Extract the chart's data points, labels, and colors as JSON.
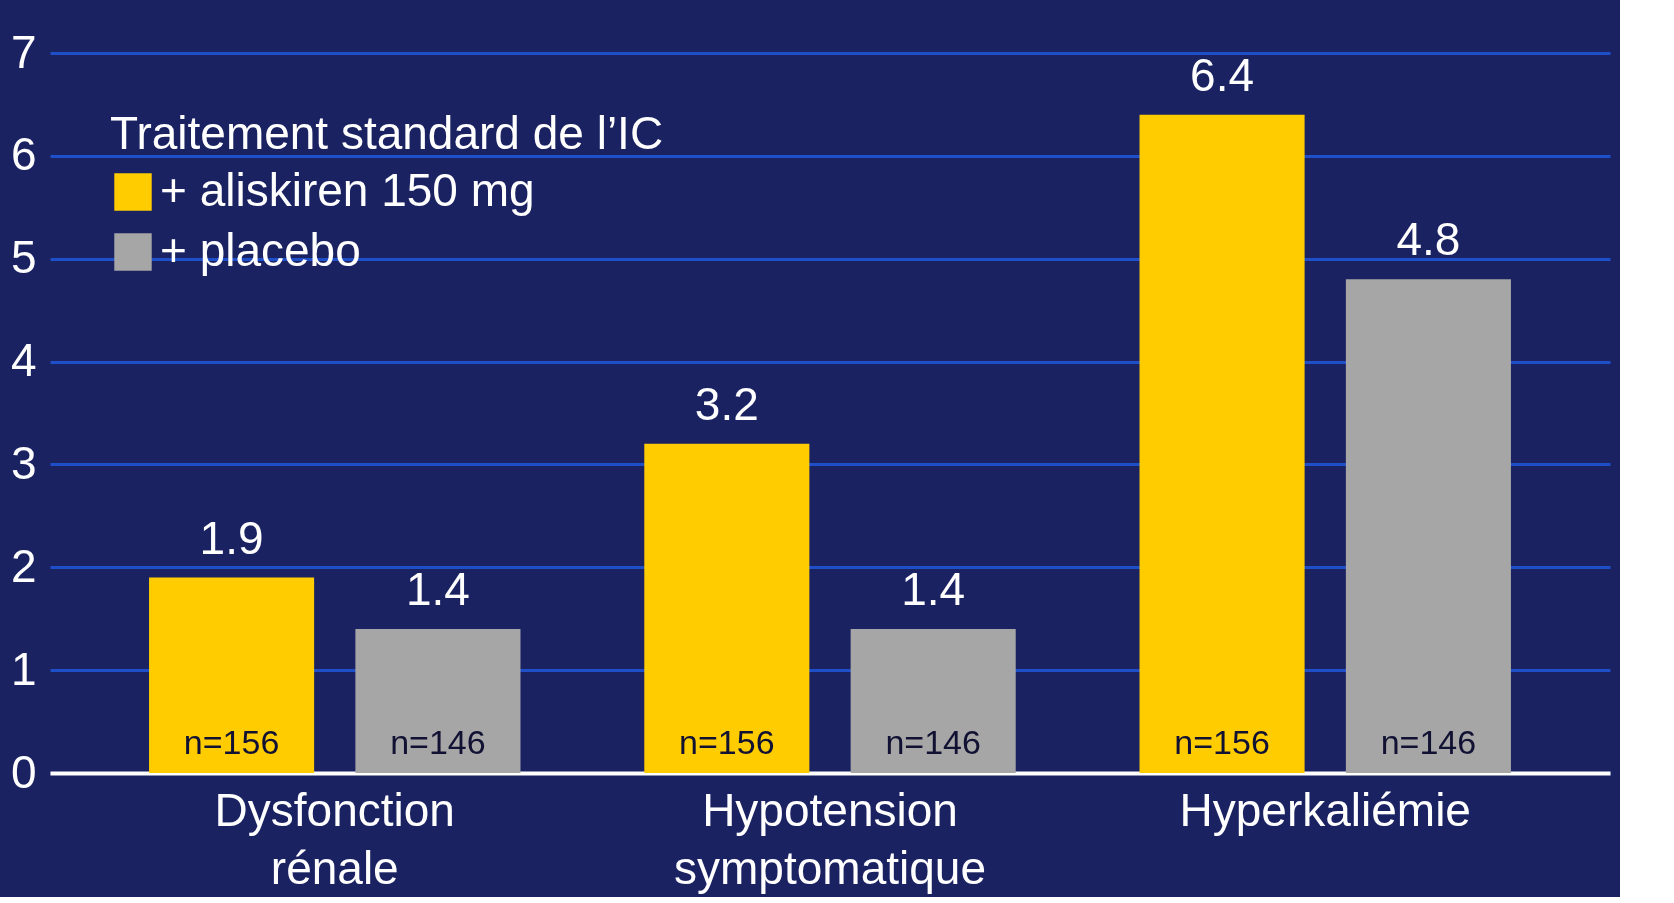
{
  "chart_data": {
    "type": "bar",
    "categories": [
      "Dysfonction rénale",
      "Hypotension symptomatique",
      "Hyperkaliémie"
    ],
    "legend_title": "Traitement standard de l’IC",
    "series": [
      {
        "name": "+ aliskiren 150 mg",
        "color": "#ffcc00",
        "values": [
          1.9,
          3.2,
          6.4
        ]
      },
      {
        "name": "+ placebo",
        "color": "#a6a6a6",
        "values": [
          1.4,
          1.4,
          4.8
        ]
      }
    ],
    "annotations": [
      "n=156",
      "n=146",
      "n=156",
      "n=146",
      "n=156",
      "n=146"
    ],
    "ylim": [
      0,
      7
    ],
    "yticks": [
      0,
      1,
      2,
      3,
      4,
      5,
      6,
      7
    ],
    "grid": "y",
    "legend": "top left",
    "data_labels": true
  }
}
